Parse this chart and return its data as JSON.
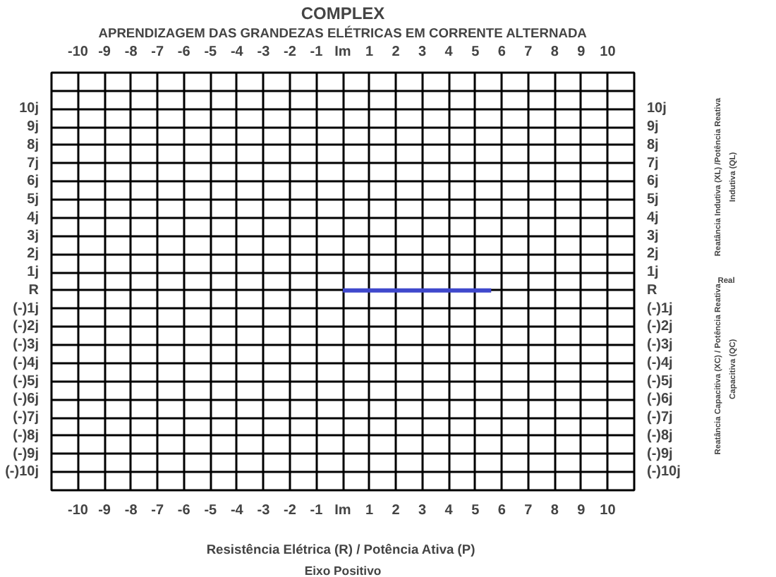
{
  "chart_data": {
    "type": "line",
    "title": "COMPLEX",
    "subtitle": "APRENDIZAGEM DAS GRANDEZAS ELÉTRICAS EM CORRENTE ALTERNADA",
    "xlabel": "Resistência Elétrica (R)  / Potência Ativa (P)",
    "annotations": [
      "Reatância Indutiva (XL) /Potência Reativa\nIndutiva (QL)",
      "Real",
      "Reatância Capacitiva (XC) / Potência Reativa\nCapacitiva (QC)",
      "Eixo Positivo"
    ],
    "series": [
      {
        "x": [
          0,
          5.6
        ],
        "values": [
          0,
          0
        ],
        "color": "#3f48cc"
      }
    ],
    "xlim": [
      -11,
      11
    ],
    "xticks": [
      -10,
      -9,
      -8,
      -7,
      -6,
      -5,
      -4,
      -3,
      -2,
      -1,
      {
        "value": 0,
        "label": "Im"
      },
      1,
      2,
      3,
      4,
      5,
      6,
      7,
      8,
      9,
      10
    ],
    "x2lim": [
      -11,
      11
    ],
    "x2ticks": [
      -10,
      -9,
      -8,
      -7,
      -6,
      -5,
      -4,
      -3,
      -2,
      -1,
      {
        "value": 0,
        "label": "Im"
      },
      1,
      2,
      3,
      4,
      5,
      6,
      7,
      8,
      9,
      10
    ],
    "ylim": [
      -11,
      12
    ],
    "yticks": [
      {
        "value": 10,
        "label": "10j"
      },
      {
        "value": 9,
        "label": "9j"
      },
      {
        "value": 8,
        "label": "8j"
      },
      {
        "value": 7,
        "label": "7j"
      },
      {
        "value": 6,
        "label": "6j"
      },
      {
        "value": 5,
        "label": "5j"
      },
      {
        "value": 4,
        "label": "4j"
      },
      {
        "value": 3,
        "label": "3j"
      },
      {
        "value": 2,
        "label": "2j"
      },
      {
        "value": 1,
        "label": "1j"
      },
      {
        "value": 0,
        "label": "R"
      },
      {
        "value": -1,
        "label": "(-)1j"
      },
      {
        "value": -2,
        "label": "(-)2j"
      },
      {
        "value": -3,
        "label": "(-)3j"
      },
      {
        "value": -4,
        "label": "(-)4j"
      },
      {
        "value": -5,
        "label": "(-)5j"
      },
      {
        "value": -6,
        "label": "(-)6j"
      },
      {
        "value": -7,
        "label": "(-)7j"
      },
      {
        "value": -8,
        "label": "(-)8j"
      },
      {
        "value": -9,
        "label": "(-)9j"
      },
      {
        "value": -10,
        "label": "(-)10j"
      }
    ],
    "y2lim": [
      -11,
      12
    ],
    "y2ticks": [
      {
        "value": 10,
        "label": "10j"
      },
      {
        "value": 9,
        "label": "9j"
      },
      {
        "value": 8,
        "label": "8j"
      },
      {
        "value": 7,
        "label": "7j"
      },
      {
        "value": 6,
        "label": "6j"
      },
      {
        "value": 5,
        "label": "5j"
      },
      {
        "value": 4,
        "label": "4j"
      },
      {
        "value": 3,
        "label": "3j"
      },
      {
        "value": 2,
        "label": "2j"
      },
      {
        "value": 1,
        "label": "1j"
      },
      {
        "value": 0,
        "label": "R"
      },
      {
        "value": -1,
        "label": "(-)1j"
      },
      {
        "value": -2,
        "label": "(-)2j"
      },
      {
        "value": -3,
        "label": "(-)3j"
      },
      {
        "value": -4,
        "label": "(-)4j"
      },
      {
        "value": -5,
        "label": "(-)5j"
      },
      {
        "value": -6,
        "label": "(-)6j"
      },
      {
        "value": -7,
        "label": "(-)7j"
      },
      {
        "value": -8,
        "label": "(-)8j"
      },
      {
        "value": -9,
        "label": "(-)9j"
      },
      {
        "value": -10,
        "label": "(-)10j"
      }
    ],
    "grid": true
  }
}
